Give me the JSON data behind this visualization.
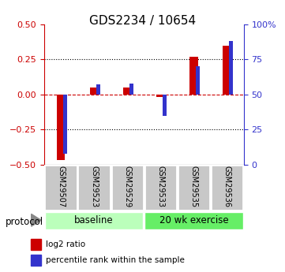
{
  "title": "GDS2234 / 10654",
  "samples": [
    "GSM29507",
    "GSM29523",
    "GSM29529",
    "GSM29533",
    "GSM29535",
    "GSM29536"
  ],
  "log2_ratio": [
    -0.47,
    0.05,
    0.05,
    -0.02,
    0.27,
    0.35
  ],
  "percentile_rank_mapped": [
    -0.42,
    0.07,
    0.08,
    -0.15,
    0.2,
    0.38
  ],
  "left_ylim": [
    -0.5,
    0.5
  ],
  "right_ylim": [
    0,
    100
  ],
  "left_yticks": [
    -0.5,
    -0.25,
    0,
    0.25,
    0.5
  ],
  "right_yticks": [
    0,
    25,
    50,
    75,
    100
  ],
  "right_yticklabels": [
    "0",
    "25",
    "50",
    "75",
    "100%"
  ],
  "dotted_lines_black": [
    -0.25,
    0.25
  ],
  "zero_line": 0,
  "red_color": "#cc0000",
  "blue_color": "#3333cc",
  "baseline_color": "#bbffbb",
  "exercise_color": "#66ee66",
  "baseline_label": "baseline",
  "exercise_label": "20 wk exercise",
  "protocol_label": "protocol",
  "legend_red": "log2 ratio",
  "legend_blue": "percentile rank within the sample",
  "left_axis_color": "#cc0000",
  "right_axis_color": "#3333cc",
  "zero_line_color": "#cc0000",
  "sample_box_color": "#c8c8c8",
  "title_fontsize": 11,
  "tick_fontsize": 8,
  "bar_width": 0.25,
  "blue_bar_width": 0.12
}
